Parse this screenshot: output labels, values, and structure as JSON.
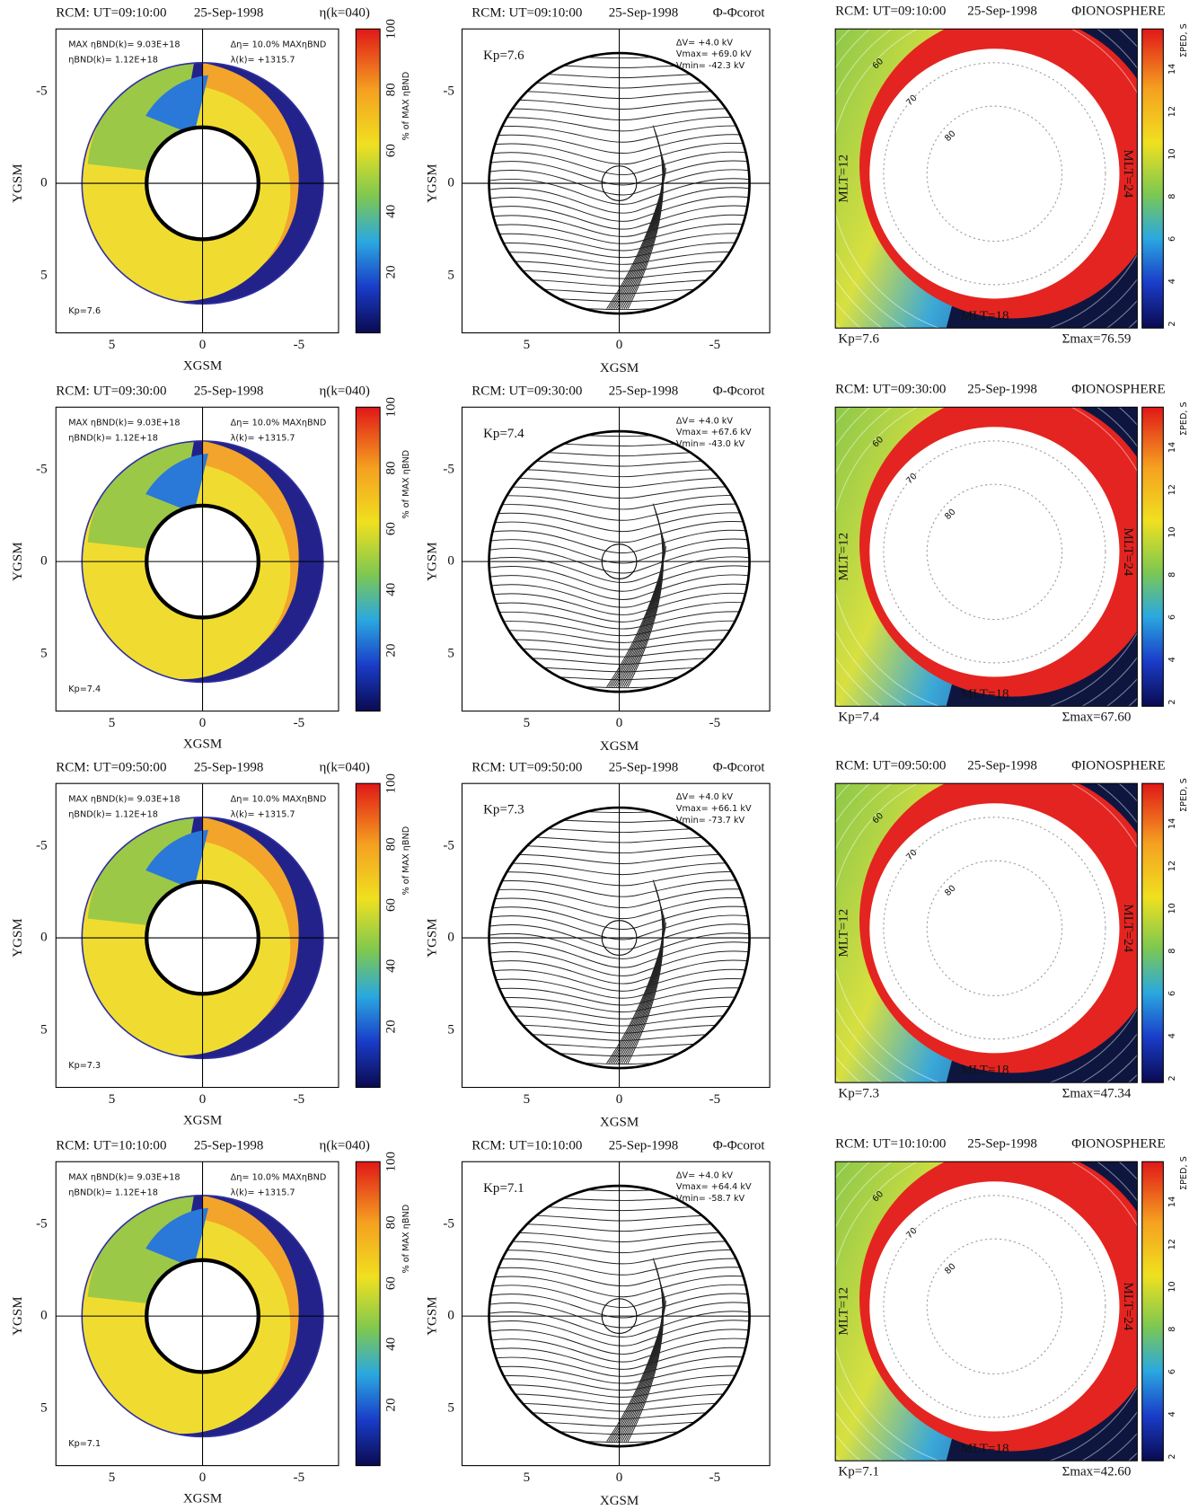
{
  "common": {
    "date": "25-Sep-1998",
    "eta_label": "η(k=040)",
    "max_eta": "MAX ηBND(k)= 9.03E+18",
    "eta_bnd": "ηBND(k)= 1.12E+18",
    "delta_eta": "Δη= 10.0% MAXηBND",
    "lambda": "λ(k)= +1315.7",
    "eta_cbar_label": "% of MAX ηBND",
    "eta_cbar_ticks": [
      "20",
      "40",
      "60",
      "80",
      "100"
    ],
    "phi_label": "Φ-Φcorot",
    "delta_v": "ΔV= +4.0 kV",
    "iono_label": "ΦIONOSPHERE",
    "sigma_ticks": [
      "2",
      "4",
      "6",
      "8",
      "10",
      "12",
      "14"
    ],
    "sigma_label": "ΣPED, S",
    "xticks": [
      "5",
      "0",
      "-5"
    ],
    "yticks": [
      "-5",
      "0",
      "5"
    ],
    "x_label": "XGSM",
    "y_label": "YGSM",
    "lat_labels": [
      "60",
      "70",
      "80"
    ],
    "mlt_12": "MLT=12",
    "mlt_24": "MLT=24",
    "mlt_18": "MLT=18"
  },
  "rows": [
    {
      "title": "RCM: UT=09:10:00",
      "kp": "Kp=7.6",
      "vmax": "Vmax= +69.0 kV",
      "vmin": "Vmin= -42.3 kV",
      "sigma_max": "Σmax=76.59"
    },
    {
      "title": "RCM: UT=09:30:00",
      "kp": "Kp=7.4",
      "vmax": "Vmax= +67.6 kV",
      "vmin": "Vmin= -43.0 kV",
      "sigma_max": "Σmax=67.60"
    },
    {
      "title": "RCM: UT=09:50:00",
      "kp": "Kp=7.3",
      "vmax": "Vmax= +66.1 kV",
      "vmin": "Vmin= -73.7 kV",
      "sigma_max": "Σmax=47.34"
    },
    {
      "title": "RCM: UT=10:10:00",
      "kp": "Kp=7.1",
      "vmax": "Vmax= +64.4 kV",
      "vmin": "Vmin= -58.7 kV",
      "sigma_max": "Σmax=42.60"
    }
  ]
}
